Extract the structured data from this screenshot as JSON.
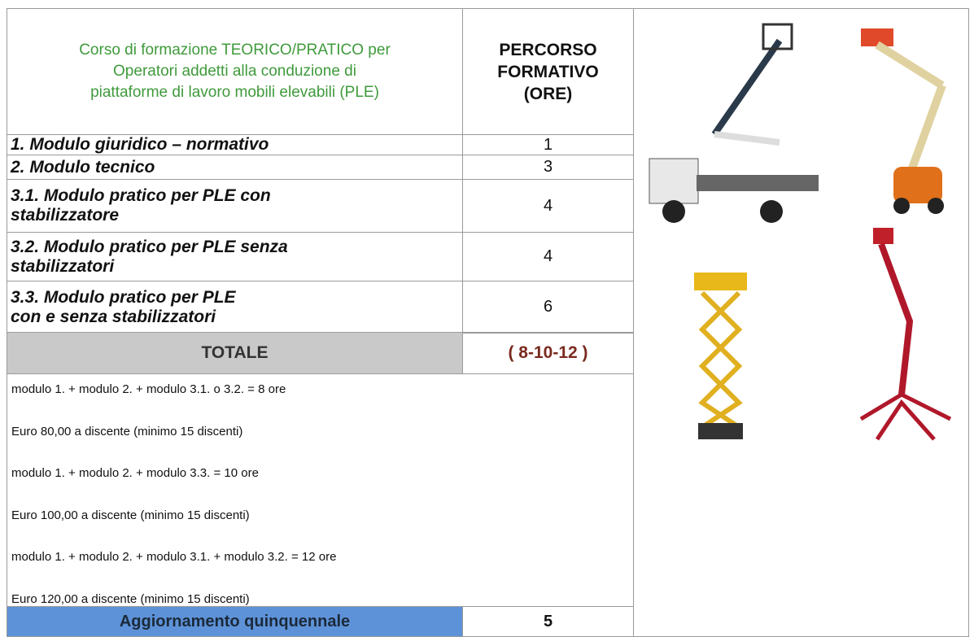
{
  "header": {
    "title": [
      "Corso di formazione TEORICO/PRATICO per",
      "Operatori addetti alla conduzione di",
      "piattaforme di lavoro mobili elevabili (PLE)"
    ],
    "hours": [
      "PERCORSO",
      "FORMATIVO",
      "(ORE)"
    ]
  },
  "rows": [
    {
      "lines": [
        "1. Modulo giuridico – normativo"
      ],
      "hours": "1"
    },
    {
      "lines": [
        "2. Modulo tecnico"
      ],
      "hours": "3"
    },
    {
      "lines": [
        "3.1. Modulo pratico per PLE con",
        "stabilizzatore"
      ],
      "hours": "4"
    },
    {
      "lines": [
        "3.2. Modulo pratico per PLE senza",
        "stabilizzatori"
      ],
      "hours": "4"
    },
    {
      "lines": [
        "3.3. Modulo pratico per PLE",
        "con e senza stabilizzatori"
      ],
      "hours": "6"
    }
  ],
  "total": {
    "label": "TOTALE",
    "hours": "( 8-10-12 )"
  },
  "notes": [
    "modulo 1. + modulo 2. + modulo 3.1. o 3.2. = 8 ore",
    "Euro 80,00 a discente (minimo 15 discenti)",
    "modulo 1. + modulo 2. + modulo 3.3. = 10 ore",
    "Euro 100,00 a discente (minimo 15 discenti)",
    "modulo 1. + modulo 2. + modulo 3.1. + modulo 3.2. = 12 ore",
    "Euro 120,00 a discente (minimo 15 discenti)"
  ],
  "update": {
    "label": "Aggiornamento quinquennale",
    "hours": "5"
  }
}
